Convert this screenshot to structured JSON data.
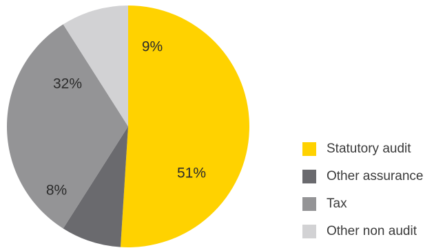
{
  "chart_data": {
    "type": "pie",
    "title": "",
    "start": "12 o'clock, clockwise",
    "series": [
      {
        "name": "Statutory audit",
        "value": 51,
        "label": "51%",
        "color": "#ffd200"
      },
      {
        "name": "Other assurance",
        "value": 8,
        "label": "8%",
        "color": "#6a6a6e"
      },
      {
        "name": "Tax",
        "value": 32,
        "label": "32%",
        "color": "#949496"
      },
      {
        "name": "Other non audit",
        "value": 9,
        "label": "9%",
        "color": "#d2d2d4"
      }
    ],
    "legend_placement": "right"
  },
  "legend": {
    "items": [
      {
        "label": "Statutory audit",
        "color": "#ffd200"
      },
      {
        "label": "Other assurance",
        "color": "#6a6a6e"
      },
      {
        "label": "Tax",
        "color": "#949496"
      },
      {
        "label": "Other non audit",
        "color": "#d2d2d4"
      }
    ]
  }
}
